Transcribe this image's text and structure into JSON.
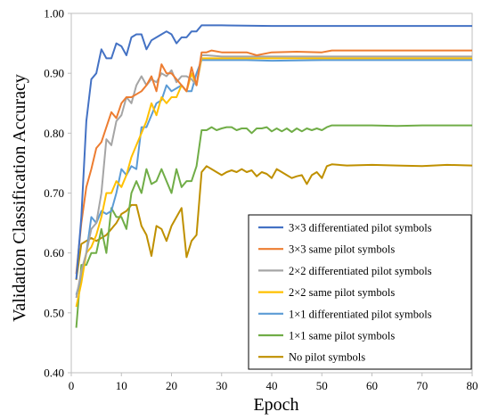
{
  "chart_data": {
    "type": "line",
    "xlabel": "Epoch",
    "ylabel": "Validation Classification Accuracy",
    "xlim": [
      0,
      80
    ],
    "ylim": [
      0.4,
      1.0
    ],
    "xticks": [
      0,
      10,
      20,
      30,
      40,
      50,
      60,
      70,
      80
    ],
    "yticks": [
      "0.40",
      "0.50",
      "0.60",
      "0.70",
      "0.80",
      "0.90",
      "1.00"
    ],
    "grid": false,
    "legend_position": "bottom-right",
    "series": [
      {
        "name": "3×3 differentiated pilot symbols",
        "color": "#4472C4",
        "points": [
          [
            1,
            0.556
          ],
          [
            2,
            0.66
          ],
          [
            3,
            0.82
          ],
          [
            4,
            0.89
          ],
          [
            5,
            0.9
          ],
          [
            6,
            0.94
          ],
          [
            7,
            0.925
          ],
          [
            8,
            0.925
          ],
          [
            9,
            0.95
          ],
          [
            10,
            0.945
          ],
          [
            11,
            0.93
          ],
          [
            12,
            0.96
          ],
          [
            13,
            0.965
          ],
          [
            14,
            0.965
          ],
          [
            15,
            0.94
          ],
          [
            16,
            0.955
          ],
          [
            17,
            0.96
          ],
          [
            18,
            0.965
          ],
          [
            19,
            0.97
          ],
          [
            20,
            0.965
          ],
          [
            21,
            0.95
          ],
          [
            22,
            0.96
          ],
          [
            23,
            0.96
          ],
          [
            24,
            0.97
          ],
          [
            25,
            0.97
          ],
          [
            26,
            0.98
          ],
          [
            27,
            0.98
          ],
          [
            30,
            0.98
          ],
          [
            40,
            0.979
          ],
          [
            50,
            0.979
          ],
          [
            60,
            0.979
          ],
          [
            70,
            0.979
          ],
          [
            80,
            0.979
          ]
        ]
      },
      {
        "name": "3×3 same pilot symbols",
        "color": "#ED7D31",
        "points": [
          [
            1,
            0.565
          ],
          [
            2,
            0.65
          ],
          [
            3,
            0.71
          ],
          [
            4,
            0.74
          ],
          [
            5,
            0.775
          ],
          [
            6,
            0.785
          ],
          [
            7,
            0.81
          ],
          [
            8,
            0.835
          ],
          [
            9,
            0.825
          ],
          [
            10,
            0.85
          ],
          [
            11,
            0.86
          ],
          [
            12,
            0.86
          ],
          [
            13,
            0.865
          ],
          [
            14,
            0.87
          ],
          [
            15,
            0.88
          ],
          [
            16,
            0.895
          ],
          [
            17,
            0.87
          ],
          [
            18,
            0.915
          ],
          [
            19,
            0.9
          ],
          [
            20,
            0.9
          ],
          [
            21,
            0.89
          ],
          [
            22,
            0.88
          ],
          [
            23,
            0.87
          ],
          [
            24,
            0.91
          ],
          [
            25,
            0.88
          ],
          [
            26,
            0.935
          ],
          [
            27,
            0.935
          ],
          [
            28,
            0.938
          ],
          [
            30,
            0.935
          ],
          [
            35,
            0.935
          ],
          [
            37,
            0.93
          ],
          [
            40,
            0.935
          ],
          [
            45,
            0.936
          ],
          [
            50,
            0.935
          ],
          [
            52,
            0.938
          ],
          [
            60,
            0.938
          ],
          [
            70,
            0.938
          ],
          [
            80,
            0.938
          ]
        ]
      },
      {
        "name": "2×2 differentiated pilot symbols",
        "color": "#A5A5A5",
        "points": [
          [
            1,
            0.525
          ],
          [
            2,
            0.57
          ],
          [
            3,
            0.6
          ],
          [
            4,
            0.64
          ],
          [
            5,
            0.65
          ],
          [
            6,
            0.7
          ],
          [
            7,
            0.79
          ],
          [
            8,
            0.78
          ],
          [
            9,
            0.82
          ],
          [
            10,
            0.83
          ],
          [
            11,
            0.86
          ],
          [
            12,
            0.85
          ],
          [
            13,
            0.88
          ],
          [
            14,
            0.895
          ],
          [
            15,
            0.88
          ],
          [
            16,
            0.89
          ],
          [
            17,
            0.885
          ],
          [
            18,
            0.9
          ],
          [
            19,
            0.895
          ],
          [
            20,
            0.905
          ],
          [
            21,
            0.885
          ],
          [
            22,
            0.895
          ],
          [
            23,
            0.895
          ],
          [
            24,
            0.89
          ],
          [
            25,
            0.88
          ],
          [
            26,
            0.93
          ],
          [
            27,
            0.93
          ],
          [
            30,
            0.928
          ],
          [
            40,
            0.928
          ],
          [
            50,
            0.928
          ],
          [
            60,
            0.928
          ],
          [
            70,
            0.928
          ],
          [
            80,
            0.928
          ]
        ]
      },
      {
        "name": "2×2 same pilot symbols",
        "color": "#FFC000",
        "points": [
          [
            1,
            0.51
          ],
          [
            2,
            0.55
          ],
          [
            3,
            0.6
          ],
          [
            4,
            0.61
          ],
          [
            5,
            0.63
          ],
          [
            6,
            0.66
          ],
          [
            7,
            0.7
          ],
          [
            8,
            0.7
          ],
          [
            9,
            0.72
          ],
          [
            10,
            0.71
          ],
          [
            11,
            0.73
          ],
          [
            12,
            0.76
          ],
          [
            13,
            0.78
          ],
          [
            14,
            0.8
          ],
          [
            15,
            0.82
          ],
          [
            16,
            0.85
          ],
          [
            17,
            0.83
          ],
          [
            18,
            0.86
          ],
          [
            19,
            0.85
          ],
          [
            20,
            0.86
          ],
          [
            21,
            0.86
          ],
          [
            22,
            0.88
          ],
          [
            23,
            0.87
          ],
          [
            24,
            0.9
          ],
          [
            25,
            0.88
          ],
          [
            26,
            0.925
          ],
          [
            27,
            0.925
          ],
          [
            30,
            0.925
          ],
          [
            40,
            0.925
          ],
          [
            50,
            0.925
          ],
          [
            60,
            0.925
          ],
          [
            70,
            0.925
          ],
          [
            80,
            0.925
          ]
        ]
      },
      {
        "name": "1×1 differentiated pilot symbols",
        "color": "#5B9BD5",
        "points": [
          [
            1,
            0.53
          ],
          [
            2,
            0.56
          ],
          [
            3,
            0.6
          ],
          [
            4,
            0.66
          ],
          [
            5,
            0.65
          ],
          [
            6,
            0.67
          ],
          [
            7,
            0.665
          ],
          [
            8,
            0.67
          ],
          [
            9,
            0.7
          ],
          [
            10,
            0.74
          ],
          [
            11,
            0.73
          ],
          [
            12,
            0.745
          ],
          [
            13,
            0.74
          ],
          [
            14,
            0.81
          ],
          [
            15,
            0.81
          ],
          [
            16,
            0.83
          ],
          [
            17,
            0.85
          ],
          [
            18,
            0.855
          ],
          [
            19,
            0.88
          ],
          [
            20,
            0.87
          ],
          [
            21,
            0.875
          ],
          [
            22,
            0.88
          ],
          [
            23,
            0.87
          ],
          [
            24,
            0.87
          ],
          [
            25,
            0.9
          ],
          [
            26,
            0.922
          ],
          [
            27,
            0.922
          ],
          [
            30,
            0.922
          ],
          [
            35,
            0.922
          ],
          [
            40,
            0.921
          ],
          [
            50,
            0.922
          ],
          [
            60,
            0.922
          ],
          [
            70,
            0.922
          ],
          [
            80,
            0.922
          ]
        ]
      },
      {
        "name": "1×1 same pilot symbols",
        "color": "#70AD47",
        "points": [
          [
            1,
            0.475
          ],
          [
            2,
            0.58
          ],
          [
            3,
            0.58
          ],
          [
            4,
            0.6
          ],
          [
            5,
            0.6
          ],
          [
            6,
            0.64
          ],
          [
            7,
            0.6
          ],
          [
            8,
            0.675
          ],
          [
            9,
            0.66
          ],
          [
            10,
            0.66
          ],
          [
            11,
            0.64
          ],
          [
            12,
            0.7
          ],
          [
            13,
            0.72
          ],
          [
            14,
            0.7
          ],
          [
            15,
            0.74
          ],
          [
            16,
            0.715
          ],
          [
            17,
            0.72
          ],
          [
            18,
            0.74
          ],
          [
            19,
            0.72
          ],
          [
            20,
            0.7
          ],
          [
            21,
            0.74
          ],
          [
            22,
            0.71
          ],
          [
            23,
            0.72
          ],
          [
            24,
            0.72
          ],
          [
            25,
            0.745
          ],
          [
            26,
            0.805
          ],
          [
            27,
            0.805
          ],
          [
            28,
            0.81
          ],
          [
            29,
            0.805
          ],
          [
            30,
            0.808
          ],
          [
            31,
            0.81
          ],
          [
            32,
            0.81
          ],
          [
            33,
            0.805
          ],
          [
            34,
            0.808
          ],
          [
            35,
            0.808
          ],
          [
            36,
            0.8
          ],
          [
            37,
            0.808
          ],
          [
            38,
            0.808
          ],
          [
            39,
            0.81
          ],
          [
            40,
            0.803
          ],
          [
            41,
            0.808
          ],
          [
            42,
            0.803
          ],
          [
            43,
            0.808
          ],
          [
            44,
            0.802
          ],
          [
            45,
            0.808
          ],
          [
            46,
            0.803
          ],
          [
            47,
            0.808
          ],
          [
            48,
            0.805
          ],
          [
            49,
            0.808
          ],
          [
            50,
            0.805
          ],
          [
            51,
            0.81
          ],
          [
            52,
            0.813
          ],
          [
            55,
            0.813
          ],
          [
            60,
            0.813
          ],
          [
            65,
            0.812
          ],
          [
            70,
            0.813
          ],
          [
            75,
            0.813
          ],
          [
            80,
            0.813
          ]
        ]
      },
      {
        "name": "No pilot symbols",
        "color": "#BF9000",
        "points": [
          [
            1,
            0.555
          ],
          [
            2,
            0.615
          ],
          [
            3,
            0.62
          ],
          [
            4,
            0.625
          ],
          [
            5,
            0.62
          ],
          [
            6,
            0.625
          ],
          [
            7,
            0.63
          ],
          [
            8,
            0.64
          ],
          [
            9,
            0.65
          ],
          [
            10,
            0.665
          ],
          [
            11,
            0.67
          ],
          [
            12,
            0.68
          ],
          [
            13,
            0.68
          ],
          [
            14,
            0.645
          ],
          [
            15,
            0.63
          ],
          [
            16,
            0.595
          ],
          [
            17,
            0.645
          ],
          [
            18,
            0.64
          ],
          [
            19,
            0.62
          ],
          [
            20,
            0.645
          ],
          [
            21,
            0.66
          ],
          [
            22,
            0.675
          ],
          [
            23,
            0.593
          ],
          [
            24,
            0.62
          ],
          [
            25,
            0.63
          ],
          [
            26,
            0.735
          ],
          [
            27,
            0.745
          ],
          [
            28,
            0.74
          ],
          [
            29,
            0.735
          ],
          [
            30,
            0.73
          ],
          [
            31,
            0.735
          ],
          [
            32,
            0.738
          ],
          [
            33,
            0.735
          ],
          [
            34,
            0.74
          ],
          [
            35,
            0.735
          ],
          [
            36,
            0.738
          ],
          [
            37,
            0.728
          ],
          [
            38,
            0.735
          ],
          [
            39,
            0.732
          ],
          [
            40,
            0.725
          ],
          [
            41,
            0.74
          ],
          [
            42,
            0.735
          ],
          [
            43,
            0.73
          ],
          [
            44,
            0.725
          ],
          [
            45,
            0.728
          ],
          [
            46,
            0.73
          ],
          [
            47,
            0.715
          ],
          [
            48,
            0.73
          ],
          [
            49,
            0.735
          ],
          [
            50,
            0.725
          ],
          [
            51,
            0.745
          ],
          [
            52,
            0.748
          ],
          [
            55,
            0.746
          ],
          [
            60,
            0.747
          ],
          [
            65,
            0.746
          ],
          [
            70,
            0.745
          ],
          [
            75,
            0.747
          ],
          [
            80,
            0.746
          ]
        ]
      }
    ]
  }
}
